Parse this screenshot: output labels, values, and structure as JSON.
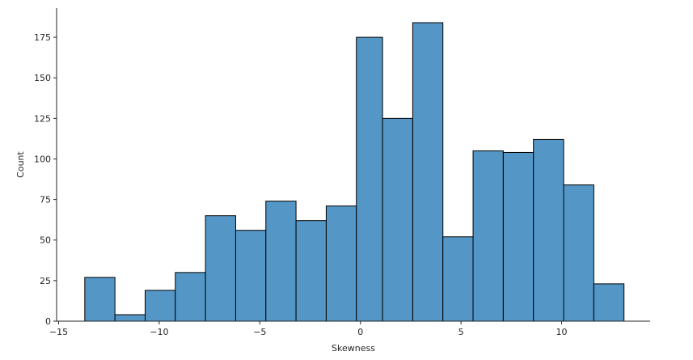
{
  "chart_data": {
    "type": "bar",
    "xlabel": "Skewness",
    "ylabel": "Count",
    "xlim": [
      -15.1,
      14.4
    ],
    "ylim": [
      0,
      193
    ],
    "grid": false,
    "bar_color": "#5497c7",
    "bar_edge_color": "#000000",
    "bin_edges": [
      -13.7,
      -12.2,
      -10.7,
      -9.2,
      -7.7,
      -6.2,
      -4.7,
      -3.2,
      -1.7,
      -0.2,
      1.1,
      2.6,
      4.1,
      5.6,
      7.1,
      8.6,
      10.1,
      11.6,
      13.1
    ],
    "values": [
      27,
      4,
      19,
      30,
      65,
      56,
      74,
      62,
      71,
      175,
      125,
      184,
      52,
      105,
      104,
      112,
      84,
      23
    ],
    "x_ticks": [
      -15,
      -10,
      -5,
      0,
      5,
      10
    ],
    "x_tick_labels": [
      "−15",
      "−10",
      "−5",
      "0",
      "5",
      "10"
    ],
    "y_ticks": [
      0,
      25,
      50,
      75,
      100,
      125,
      150,
      175
    ],
    "y_tick_labels": [
      "0",
      "25",
      "50",
      "75",
      "100",
      "125",
      "150",
      "175"
    ]
  }
}
